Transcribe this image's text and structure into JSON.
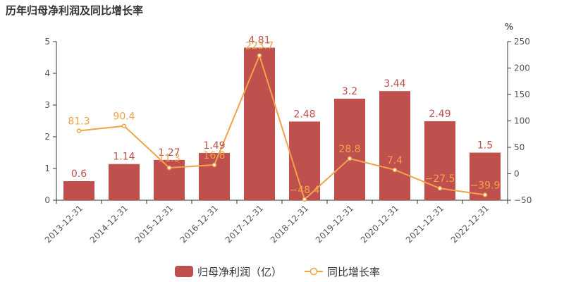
{
  "title": "历年归母净利润及同比增长率",
  "chart_data": {
    "type": "bar",
    "categories": [
      "2013-12-31",
      "2014-12-31",
      "2015-12-31",
      "2016-12-31",
      "2017-12-31",
      "2018-12-31",
      "2019-12-31",
      "2020-12-31",
      "2021-12-31",
      "2022-12-31"
    ],
    "series": [
      {
        "name": "归母净利润（亿）",
        "type": "bar",
        "axis": "left",
        "color": "#c0504d",
        "values": [
          0.6,
          1.14,
          1.27,
          1.49,
          4.81,
          2.48,
          3.2,
          3.44,
          2.49,
          1.5
        ],
        "labels": [
          "0.6",
          "1.14",
          "1.27",
          "1.49",
          "4.81",
          "2.48",
          "3.2",
          "3.44",
          "2.49",
          "1.5"
        ]
      },
      {
        "name": "同比增长率",
        "type": "line",
        "axis": "right",
        "color": "#f0a34a",
        "values": [
          81.3,
          90.4,
          11.3,
          16.8,
          223.7,
          -48.4,
          28.8,
          7.4,
          -27.5,
          -39.9
        ],
        "labels": [
          "81.3",
          "90.4",
          "11.3",
          "16.8",
          "223.7",
          "−48.4",
          "28.8",
          "7.4",
          "−27.5",
          "−39.9"
        ]
      }
    ],
    "y_left": {
      "ylim": [
        0,
        5
      ],
      "ticks": [
        0,
        1,
        2,
        3,
        4,
        5
      ]
    },
    "y_right": {
      "label": "%",
      "ylim": [
        -50,
        250
      ],
      "ticks": [
        -50,
        0,
        50,
        100,
        150,
        200,
        250
      ],
      "tick_labels": [
        "−50",
        "0",
        "50",
        "100",
        "150",
        "200",
        "250"
      ]
    },
    "grid": false,
    "legend": "bottom-center"
  }
}
